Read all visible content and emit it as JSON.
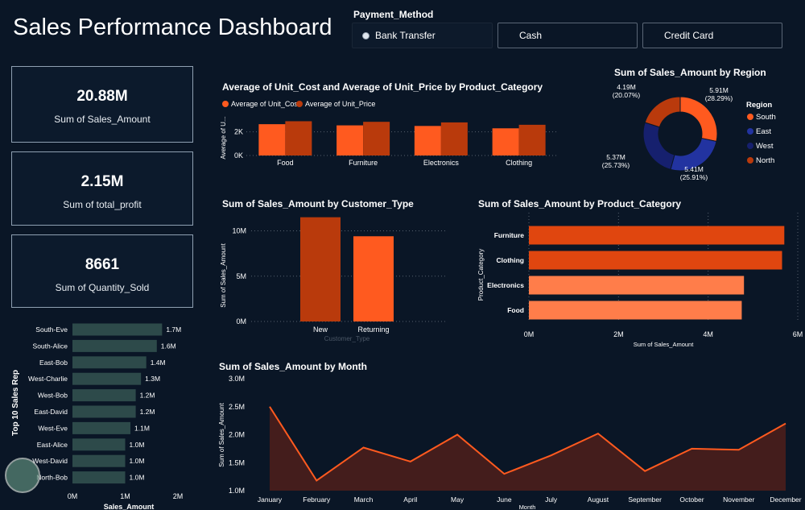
{
  "page": {
    "title": "Sales Performance Dashboard"
  },
  "slicer": {
    "title": "Payment_Method",
    "options": [
      {
        "label": "Bank Transfer",
        "selected": true
      },
      {
        "label": "Cash",
        "selected": false
      },
      {
        "label": "Credit Card",
        "selected": false
      }
    ]
  },
  "kpis": [
    {
      "value": "20.88M",
      "label": "Sum of Sales_Amount"
    },
    {
      "value": "2.15M",
      "label": "Sum of total_profit"
    },
    {
      "value": "8661",
      "label": "Sum of Quantity_Sold"
    }
  ],
  "colors": {
    "background": "#0a1626",
    "orange": "#ff5a1f",
    "dark_orange": "#b93a0c",
    "light_orange": "#ff8352",
    "navy": "#1b2a8c",
    "navy_dark": "#131f6e",
    "rep_bar": "#2d4a4a"
  },
  "chart_data": [
    {
      "id": "unit_cost_price",
      "type": "bar",
      "title": "Average of Unit_Cost and Average of Unit_Price by Product_Category",
      "ylabel": "Average of U...",
      "xlabel": "",
      "categories": [
        "Food",
        "Furniture",
        "Electronics",
        "Clothing"
      ],
      "series": [
        {
          "name": "Average of Unit_Cost",
          "values": [
            2650,
            2550,
            2500,
            2300
          ]
        },
        {
          "name": "Average of Unit_Price",
          "values": [
            2900,
            2850,
            2800,
            2600
          ]
        }
      ],
      "yticks": [
        "0K",
        "2K"
      ],
      "ylim": [
        0,
        3000
      ],
      "legend": "top-left"
    },
    {
      "id": "sales_by_region",
      "type": "pie",
      "title": "Sum of Sales_Amount by Region",
      "legend_title": "Region",
      "legend": "right",
      "slices": [
        {
          "name": "South",
          "value": 5.91,
          "label": "5.91M",
          "pct": "(28.29%)",
          "color": "#ff5a1f"
        },
        {
          "name": "East",
          "value": 5.41,
          "label": "5.41M",
          "pct": "(25.91%)",
          "color": "#2233a0"
        },
        {
          "name": "West",
          "value": 5.37,
          "label": "5.37M",
          "pct": "(25.73%)",
          "color": "#16206e"
        },
        {
          "name": "North",
          "value": 4.19,
          "label": "4.19M",
          "pct": "(20.07%)",
          "color": "#b93a0c"
        }
      ]
    },
    {
      "id": "sales_by_customer_type",
      "type": "bar",
      "title": "Sum of Sales_Amount by Customer_Type",
      "xlabel": "Customer_Type",
      "ylabel": "Sum of Sales_Amount",
      "categories": [
        "New",
        "Returning"
      ],
      "values": [
        11.5,
        9.4
      ],
      "yticks": [
        "0M",
        "5M",
        "10M"
      ],
      "ylim": [
        0,
        12
      ]
    },
    {
      "id": "sales_by_product_category",
      "type": "bar",
      "orientation": "horizontal",
      "title": "Sum of Sales_Amount by Product_Category",
      "xlabel": "Sum of Sales_Amount",
      "ylabel": "Product_Category",
      "categories": [
        "Furniture",
        "Clothing",
        "Electronics",
        "Food"
      ],
      "values": [
        5.7,
        5.65,
        4.8,
        4.75
      ],
      "xticks": [
        "0M",
        "2M",
        "4M",
        "6M"
      ],
      "xlim": [
        0,
        6
      ]
    },
    {
      "id": "top10_sales_rep",
      "type": "bar",
      "orientation": "horizontal",
      "title": "",
      "xlabel": "Sales_Amount",
      "ylabel": "Top 10 Sales Rep",
      "categories": [
        "South-Eve",
        "South-Alice",
        "East-Bob",
        "West-Charlie",
        "West-Bob",
        "East-David",
        "West-Eve",
        "East-Alice",
        "West-David",
        "North-Bob"
      ],
      "values": [
        1.7,
        1.6,
        1.4,
        1.3,
        1.2,
        1.2,
        1.1,
        1.0,
        1.0,
        1.0
      ],
      "labels": [
        "1.7M",
        "1.6M",
        "1.4M",
        "1.3M",
        "1.2M",
        "1.2M",
        "1.1M",
        "1.0M",
        "1.0M",
        "1.0M"
      ],
      "xticks": [
        "0M",
        "1M",
        "2M"
      ],
      "xlim": [
        0,
        2
      ]
    },
    {
      "id": "sales_by_month",
      "type": "area",
      "title": "Sum of Sales_Amount by Month",
      "xlabel": "Month",
      "ylabel": "Sum of Sales_Amount",
      "categories": [
        "January",
        "February",
        "March",
        "April",
        "May",
        "June",
        "July",
        "August",
        "September",
        "October",
        "November",
        "December"
      ],
      "values": [
        2.5,
        1.18,
        1.77,
        1.52,
        2.0,
        1.3,
        1.63,
        2.02,
        1.35,
        1.75,
        1.73,
        2.2
      ],
      "yticks": [
        "1.0M",
        "1.5M",
        "2.0M",
        "2.5M",
        "3.0M"
      ],
      "ylim": [
        1.0,
        3.0
      ]
    }
  ]
}
